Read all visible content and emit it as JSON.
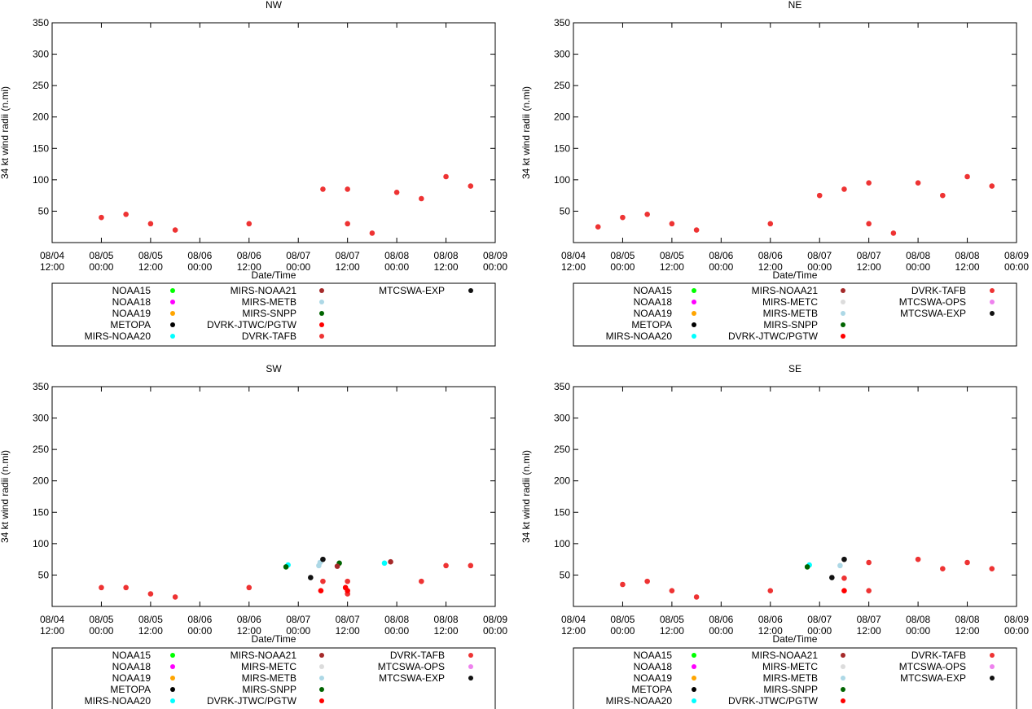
{
  "x_axis": {
    "label": "Date/Time",
    "ticks": [
      {
        "day": "08/04",
        "time": "12:00",
        "t": 0
      },
      {
        "day": "08/05",
        "time": "00:00",
        "t": 12
      },
      {
        "day": "08/05",
        "time": "12:00",
        "t": 24
      },
      {
        "day": "08/06",
        "time": "00:00",
        "t": 36
      },
      {
        "day": "08/06",
        "time": "12:00",
        "t": 48
      },
      {
        "day": "08/07",
        "time": "00:00",
        "t": 60
      },
      {
        "day": "08/07",
        "time": "12:00",
        "t": 72
      },
      {
        "day": "08/08",
        "time": "00:00",
        "t": 84
      },
      {
        "day": "08/08",
        "time": "12:00",
        "t": 96
      },
      {
        "day": "08/09",
        "time": "00:00",
        "t": 108
      }
    ],
    "range_hours": [
      0,
      108
    ],
    "origin": "08/04 12:00"
  },
  "y_axis": {
    "label": "34 kt wind radii (n.mi)",
    "ticks": [
      50,
      100,
      150,
      200,
      250,
      300,
      350
    ],
    "range": [
      0,
      350
    ]
  },
  "chart_data": [
    {
      "type": "scatter",
      "title": "NW",
      "legend": {
        "columns": [
          [
            {
              "label": "NOAA15",
              "color": "#00ff00"
            },
            {
              "label": "NOAA18",
              "color": "#ff00ff"
            },
            {
              "label": "NOAA19",
              "color": "#ffa500"
            },
            {
              "label": "METOPA",
              "color": "#000000"
            },
            {
              "label": "MIRS-NOAA20",
              "color": "#00ffff"
            }
          ],
          [
            {
              "label": "MIRS-NOAA21",
              "color": "#a52a2a"
            },
            {
              "label": "MIRS-METB",
              "color": "#add8e6"
            },
            {
              "label": "MIRS-SNPP",
              "color": "#006400"
            },
            {
              "label": "DVRK-JTWC/PGTW",
              "color": "#ff0000"
            },
            {
              "label": "DVRK-TAFB",
              "color": "#ee3333"
            }
          ],
          [
            {
              "label": "MTCSWA-EXP",
              "color": "#111111"
            }
          ]
        ]
      },
      "series": [
        {
          "name": "DVRK-TAFB",
          "color": "#ee3333",
          "points": [
            [
              12,
              40
            ],
            [
              18,
              45
            ],
            [
              24,
              30
            ],
            [
              30,
              20
            ],
            [
              48,
              30
            ],
            [
              66,
              85
            ],
            [
              72,
              30
            ],
            [
              72,
              85
            ],
            [
              78,
              15
            ],
            [
              84,
              80
            ],
            [
              90,
              70
            ],
            [
              96,
              105
            ],
            [
              102,
              90
            ]
          ]
        }
      ]
    },
    {
      "type": "scatter",
      "title": "NE",
      "legend": {
        "columns": [
          [
            {
              "label": "NOAA15",
              "color": "#00ff00"
            },
            {
              "label": "NOAA18",
              "color": "#ff00ff"
            },
            {
              "label": "NOAA19",
              "color": "#ffa500"
            },
            {
              "label": "METOPA",
              "color": "#000000"
            },
            {
              "label": "MIRS-NOAA20",
              "color": "#00ffff"
            }
          ],
          [
            {
              "label": "MIRS-NOAA21",
              "color": "#a52a2a"
            },
            {
              "label": "MIRS-METC",
              "color": "#dcdcdc"
            },
            {
              "label": "MIRS-METB",
              "color": "#add8e6"
            },
            {
              "label": "MIRS-SNPP",
              "color": "#006400"
            },
            {
              "label": "DVRK-JTWC/PGTW",
              "color": "#ff0000"
            }
          ],
          [
            {
              "label": "DVRK-TAFB",
              "color": "#ee3333"
            },
            {
              "label": "MTCSWA-OPS",
              "color": "#ee82ee"
            },
            {
              "label": "MTCSWA-EXP",
              "color": "#111111"
            }
          ]
        ]
      },
      "series": [
        {
          "name": "DVRK-TAFB",
          "color": "#ee3333",
          "points": [
            [
              6,
              25
            ],
            [
              12,
              40
            ],
            [
              18,
              45
            ],
            [
              24,
              30
            ],
            [
              30,
              20
            ],
            [
              48,
              30
            ],
            [
              60,
              75
            ],
            [
              66,
              85
            ],
            [
              72,
              30
            ],
            [
              72,
              95
            ],
            [
              78,
              15
            ],
            [
              84,
              95
            ],
            [
              90,
              75
            ],
            [
              96,
              105
            ],
            [
              102,
              90
            ]
          ]
        }
      ]
    },
    {
      "type": "scatter",
      "title": "SW",
      "legend": {
        "columns": [
          [
            {
              "label": "NOAA15",
              "color": "#00ff00"
            },
            {
              "label": "NOAA18",
              "color": "#ff00ff"
            },
            {
              "label": "NOAA19",
              "color": "#ffa500"
            },
            {
              "label": "METOPA",
              "color": "#000000"
            },
            {
              "label": "MIRS-NOAA20",
              "color": "#00ffff"
            }
          ],
          [
            {
              "label": "MIRS-NOAA21",
              "color": "#a52a2a"
            },
            {
              "label": "MIRS-METC",
              "color": "#dcdcdc"
            },
            {
              "label": "MIRS-METB",
              "color": "#add8e6"
            },
            {
              "label": "MIRS-SNPP",
              "color": "#006400"
            },
            {
              "label": "DVRK-JTWC/PGTW",
              "color": "#ff0000"
            }
          ],
          [
            {
              "label": "DVRK-TAFB",
              "color": "#ee3333"
            },
            {
              "label": "MTCSWA-OPS",
              "color": "#ee82ee"
            },
            {
              "label": "MTCSWA-EXP",
              "color": "#111111"
            }
          ]
        ]
      },
      "series": [
        {
          "name": "DVRK-TAFB",
          "color": "#ee3333",
          "points": [
            [
              12,
              30
            ],
            [
              18,
              30
            ],
            [
              24,
              20
            ],
            [
              30,
              15
            ],
            [
              48,
              30
            ],
            [
              66,
              40
            ],
            [
              72,
              40
            ],
            [
              72,
              20
            ],
            [
              90,
              40
            ],
            [
              96,
              65
            ],
            [
              102,
              65
            ]
          ]
        },
        {
          "name": "DVRK-JTWC/PGTW",
          "color": "#ff0000",
          "points": [
            [
              65.5,
              25
            ],
            [
              71.5,
              30
            ],
            [
              72,
              25
            ]
          ]
        },
        {
          "name": "MIRS-NOAA20",
          "color": "#00ffff",
          "points": [
            [
              57.5,
              66
            ],
            [
              81,
              69
            ]
          ]
        },
        {
          "name": "MIRS-METB",
          "color": "#add8e6",
          "points": [
            [
              65,
              65
            ],
            [
              65.3,
              70
            ]
          ]
        },
        {
          "name": "MIRS-SNPP",
          "color": "#006400",
          "points": [
            [
              57,
              63
            ],
            [
              70,
              69
            ]
          ]
        },
        {
          "name": "MIRS-NOAA21",
          "color": "#a52a2a",
          "points": [
            [
              69.5,
              64
            ],
            [
              82.5,
              71
            ]
          ]
        },
        {
          "name": "MTCSWA-EXP",
          "color": "#111111",
          "points": [
            [
              63,
              46
            ],
            [
              66,
              75
            ]
          ]
        }
      ]
    },
    {
      "type": "scatter",
      "title": "SE",
      "legend": {
        "columns": [
          [
            {
              "label": "NOAA15",
              "color": "#00ff00"
            },
            {
              "label": "NOAA18",
              "color": "#ff00ff"
            },
            {
              "label": "NOAA19",
              "color": "#ffa500"
            },
            {
              "label": "METOPA",
              "color": "#000000"
            },
            {
              "label": "MIRS-NOAA20",
              "color": "#00ffff"
            }
          ],
          [
            {
              "label": "MIRS-NOAA21",
              "color": "#a52a2a"
            },
            {
              "label": "MIRS-METC",
              "color": "#dcdcdc"
            },
            {
              "label": "MIRS-METB",
              "color": "#add8e6"
            },
            {
              "label": "MIRS-SNPP",
              "color": "#006400"
            },
            {
              "label": "DVRK-JTWC/PGTW",
              "color": "#ff0000"
            }
          ],
          [
            {
              "label": "DVRK-TAFB",
              "color": "#ee3333"
            },
            {
              "label": "MTCSWA-OPS",
              "color": "#ee82ee"
            },
            {
              "label": "MTCSWA-EXP",
              "color": "#111111"
            }
          ]
        ]
      },
      "series": [
        {
          "name": "DVRK-TAFB",
          "color": "#ee3333",
          "points": [
            [
              12,
              35
            ],
            [
              18,
              40
            ],
            [
              24,
              25
            ],
            [
              30,
              15
            ],
            [
              48,
              25
            ],
            [
              66,
              45
            ],
            [
              72,
              70
            ],
            [
              72,
              25
            ],
            [
              84,
              75
            ],
            [
              90,
              60
            ],
            [
              96,
              70
            ],
            [
              102,
              60
            ]
          ]
        },
        {
          "name": "DVRK-JTWC/PGTW",
          "color": "#ff0000",
          "points": [
            [
              66,
              25
            ]
          ]
        },
        {
          "name": "MIRS-NOAA20",
          "color": "#00ffff",
          "points": [
            [
              57.5,
              66
            ]
          ]
        },
        {
          "name": "MIRS-METB",
          "color": "#add8e6",
          "points": [
            [
              65,
              65
            ]
          ]
        },
        {
          "name": "MIRS-SNPP",
          "color": "#006400",
          "points": [
            [
              57,
              63
            ]
          ]
        },
        {
          "name": "MTCSWA-EXP",
          "color": "#111111",
          "points": [
            [
              63,
              46
            ],
            [
              66,
              75
            ]
          ]
        }
      ]
    }
  ]
}
